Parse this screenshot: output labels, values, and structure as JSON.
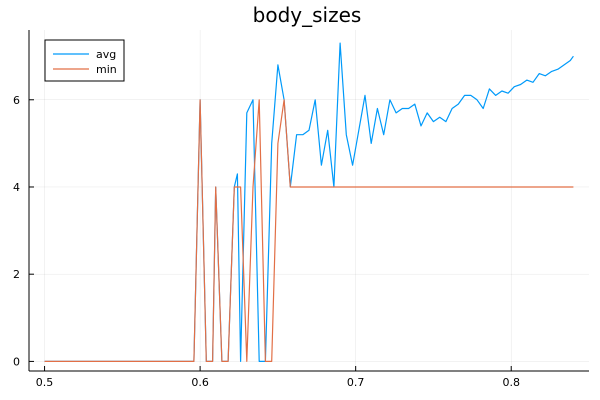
{
  "chart_data": {
    "type": "line",
    "title": "body_sizes",
    "xlabel": "",
    "ylabel": "",
    "xlim": [
      0.49,
      0.85
    ],
    "ylim": [
      -0.22,
      7.6
    ],
    "xticks": [
      0.5,
      0.6,
      0.7,
      0.8
    ],
    "xtick_labels": [
      "0.5",
      "0.6",
      "0.7",
      "0.8"
    ],
    "yticks": [
      0,
      2,
      4,
      6
    ],
    "ytick_labels": [
      "0",
      "2",
      "4",
      "6"
    ],
    "grid": true,
    "legend_position": "top-left",
    "series": [
      {
        "name": "avg",
        "color": "#009AFA",
        "x": [
          0.5,
          0.596,
          0.6,
          0.604,
          0.608,
          0.61,
          0.614,
          0.618,
          0.622,
          0.624,
          0.626,
          0.63,
          0.634,
          0.638,
          0.642,
          0.646,
          0.65,
          0.654,
          0.658,
          0.662,
          0.666,
          0.67,
          0.674,
          0.678,
          0.682,
          0.686,
          0.69,
          0.694,
          0.698,
          0.702,
          0.706,
          0.71,
          0.714,
          0.718,
          0.722,
          0.726,
          0.73,
          0.734,
          0.738,
          0.742,
          0.746,
          0.75,
          0.754,
          0.758,
          0.762,
          0.766,
          0.77,
          0.774,
          0.778,
          0.782,
          0.786,
          0.79,
          0.794,
          0.798,
          0.802,
          0.806,
          0.81,
          0.814,
          0.818,
          0.822,
          0.826,
          0.83,
          0.834,
          0.838,
          0.84
        ],
        "y": [
          0,
          0,
          6,
          0,
          0,
          4,
          0,
          0,
          4,
          4.3,
          0,
          5.7,
          6,
          0,
          0,
          5,
          6.8,
          6,
          4,
          5.2,
          5.2,
          5.3,
          6,
          4.5,
          5.3,
          4,
          7.3,
          5.2,
          4.5,
          5.3,
          6.1,
          5,
          5.8,
          5.2,
          6,
          5.7,
          5.8,
          5.8,
          5.9,
          5.4,
          5.7,
          5.5,
          5.6,
          5.5,
          5.8,
          5.9,
          6.1,
          6.1,
          6.0,
          5.8,
          6.25,
          6.1,
          6.2,
          6.15,
          6.3,
          6.35,
          6.45,
          6.4,
          6.6,
          6.55,
          6.65,
          6.7,
          6.8,
          6.9,
          7.0
        ]
      },
      {
        "name": "min",
        "color": "#E26F46",
        "x": [
          0.5,
          0.596,
          0.6,
          0.604,
          0.608,
          0.61,
          0.614,
          0.618,
          0.622,
          0.626,
          0.63,
          0.634,
          0.638,
          0.642,
          0.646,
          0.65,
          0.654,
          0.658,
          0.84
        ],
        "y": [
          0,
          0,
          6,
          0,
          0,
          4,
          0,
          0,
          4,
          4,
          0,
          4,
          6,
          0,
          0,
          5,
          6,
          4,
          4
        ]
      }
    ]
  }
}
